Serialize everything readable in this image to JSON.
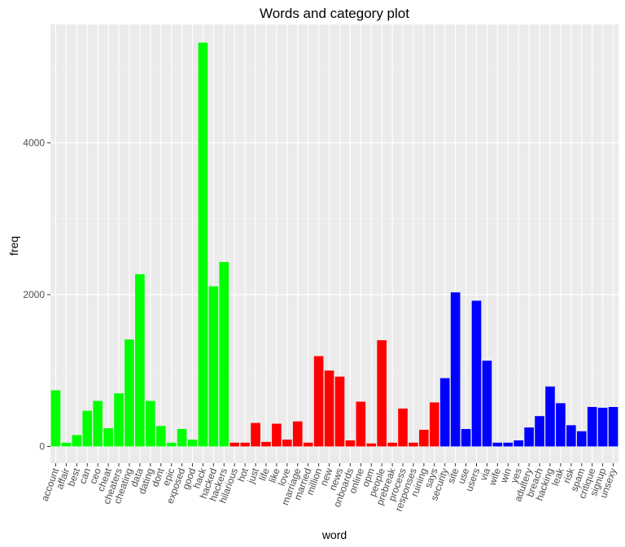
{
  "chart_data": {
    "type": "bar",
    "title": "Words and category plot",
    "xlabel": "word",
    "ylabel": "freq",
    "ylim": [
      -220,
      5560
    ],
    "y_ticks": [
      0,
      2000,
      4000
    ],
    "y_tick_labels": [
      "0",
      "2000",
      "4000"
    ],
    "grid": true,
    "legend": "none",
    "colors": {
      "green": "#00FF00",
      "red": "#FF0000",
      "blue": "#0000FF",
      "panel": "#EBEBEB",
      "grid": "#FFFFFF"
    },
    "categories": [
      "account",
      "affair",
      "best",
      "can",
      "ceo",
      "cheat",
      "cheaters",
      "cheating",
      "data",
      "dating",
      "dont",
      "epic",
      "exposed",
      "good",
      "hack",
      "hacked",
      "hackers",
      "hilarious",
      "hot",
      "just",
      "life",
      "like",
      "love",
      "marriage",
      "married",
      "million",
      "new",
      "news",
      "onboards",
      "online",
      "opm",
      "people",
      "prebreak",
      "process",
      "responses",
      "ruining",
      "says",
      "security",
      "site",
      "use",
      "users",
      "via",
      "wife",
      "win",
      "yes",
      "adultery",
      "breach",
      "hacking",
      "leak",
      "risk",
      "spam",
      "critique",
      "signup",
      "unsexy"
    ],
    "values": [
      740,
      50,
      150,
      470,
      600,
      240,
      700,
      1410,
      2270,
      600,
      270,
      50,
      230,
      90,
      5320,
      2110,
      2430,
      50,
      50,
      310,
      60,
      300,
      90,
      330,
      50,
      1190,
      1000,
      920,
      80,
      590,
      40,
      1400,
      50,
      500,
      50,
      220,
      580,
      900,
      2030,
      230,
      1920,
      1130,
      50,
      50,
      80,
      250,
      400,
      790,
      570,
      280,
      200,
      520,
      510,
      520
    ],
    "bar_colors": [
      "green",
      "green",
      "green",
      "green",
      "green",
      "green",
      "green",
      "green",
      "green",
      "green",
      "green",
      "green",
      "green",
      "green",
      "green",
      "green",
      "green",
      "red",
      "red",
      "red",
      "red",
      "red",
      "red",
      "red",
      "red",
      "red",
      "red",
      "red",
      "red",
      "red",
      "red",
      "red",
      "red",
      "red",
      "red",
      "red",
      "red",
      "blue",
      "blue",
      "blue",
      "blue",
      "blue",
      "blue",
      "blue",
      "blue",
      "blue",
      "blue",
      "blue",
      "blue",
      "blue",
      "blue",
      "blue",
      "blue",
      "blue"
    ]
  }
}
